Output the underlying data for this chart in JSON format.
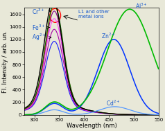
{
  "xmin": 280,
  "xmax": 550,
  "ymin": 0,
  "ymax": 1700,
  "xlabel": "Wavelength (nm)",
  "ylabel": "Fl. Intensity / arb. un.",
  "background_color": "#e8e8d8",
  "axis_fontsize": 6,
  "tick_fontsize": 5,
  "label_fontsize": 5.5,
  "yticks": [
    0,
    200,
    400,
    600,
    800,
    1000,
    1200,
    1400,
    1600
  ],
  "xticks": [
    300,
    350,
    400,
    450,
    500,
    550
  ]
}
